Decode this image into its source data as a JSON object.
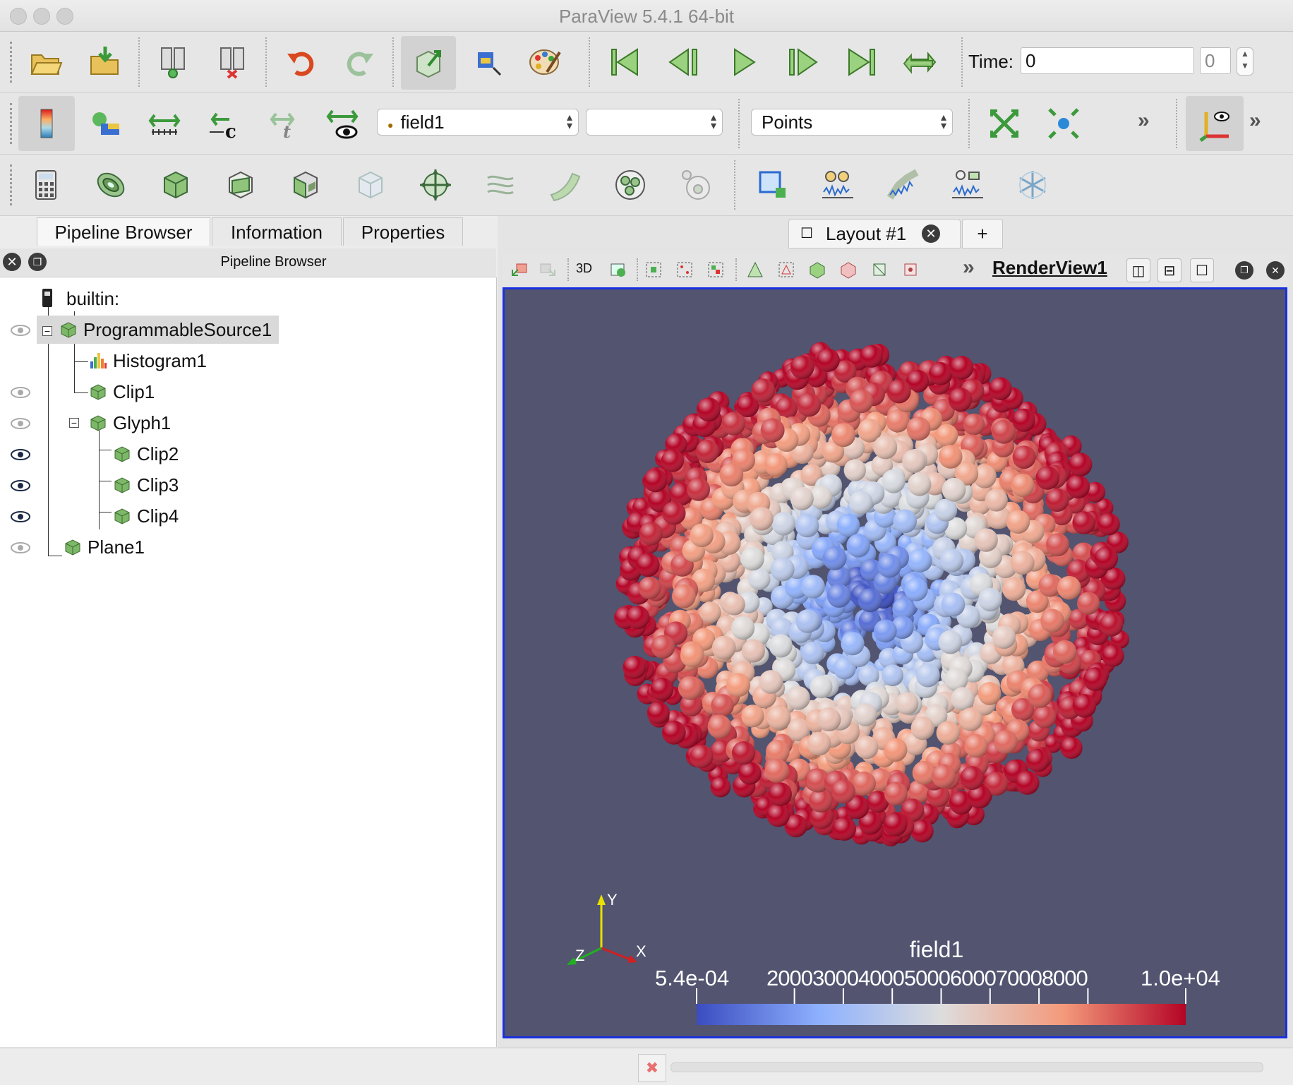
{
  "window": {
    "title": "ParaView 5.4.1 64-bit"
  },
  "main_toolbar": {
    "time_label": "Time:",
    "time_value": "0",
    "timestep_value": "0"
  },
  "active_vars": {
    "color_by": "field1",
    "component": "",
    "representation": "Points"
  },
  "left_dock": {
    "tabs": [
      "Pipeline Browser",
      "Information",
      "Properties"
    ],
    "panel_title": "Pipeline Browser"
  },
  "pipeline": {
    "root": "builtin:",
    "nodes": [
      {
        "label": "ProgrammableSource1"
      },
      {
        "label": "Histogram1"
      },
      {
        "label": "Clip1"
      },
      {
        "label": "Glyph1"
      },
      {
        "label": "Clip2"
      },
      {
        "label": "Clip3"
      },
      {
        "label": "Clip4"
      },
      {
        "label": "Plane1"
      }
    ]
  },
  "layout": {
    "tab_label": "Layout #1",
    "add_tab": "+"
  },
  "view": {
    "toggle_3d": "3D",
    "name": "RenderView1"
  },
  "orientation_axes": {
    "x": "X",
    "y": "Y",
    "z": "Z"
  },
  "color_legend": {
    "title": "field1",
    "min_label": "5.4e-04",
    "max_label": "1.0e+04",
    "tick_labels": [
      "2000",
      "3000",
      "4000",
      "5000",
      "6000",
      "7000",
      "8000"
    ],
    "colors": [
      "#3b4cc0",
      "#8db0fe",
      "#dddddd",
      "#f49a7b",
      "#b40426"
    ]
  }
}
